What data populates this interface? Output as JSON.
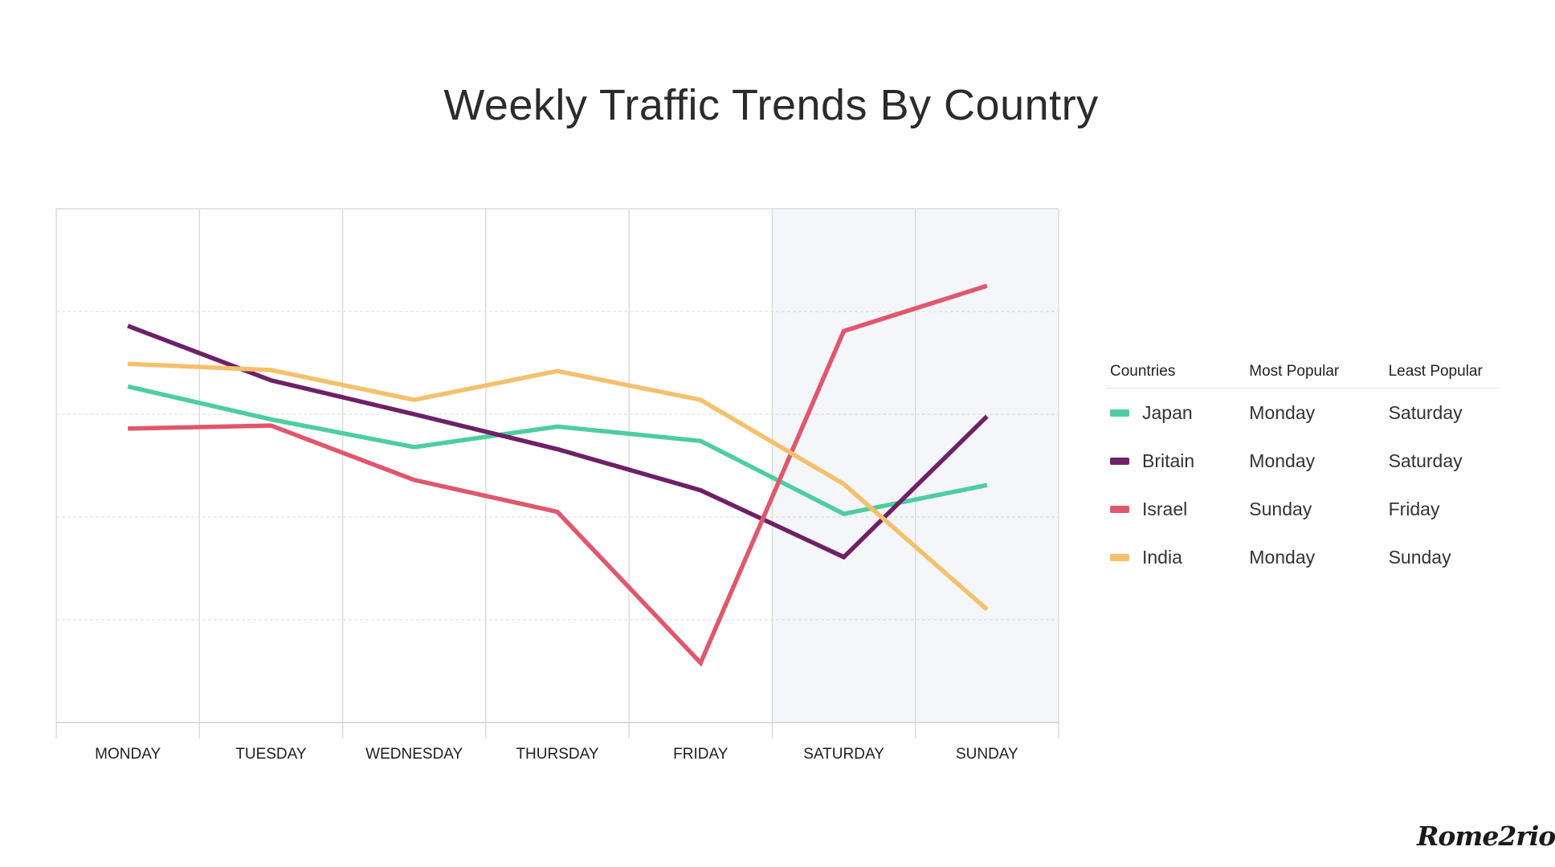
{
  "chart_data": {
    "type": "line",
    "title": "Weekly Traffic Trends By Country",
    "xlabel": "",
    "ylabel": "",
    "categories": [
      "MONDAY",
      "TUESDAY",
      "WEDNESDAY",
      "THURSDAY",
      "FRIDAY",
      "SATURDAY",
      "SUNDAY"
    ],
    "ylim": [
      0,
      5
    ],
    "grid": true,
    "highlighted_categories": [
      "SATURDAY",
      "SUNDAY"
    ],
    "series": [
      {
        "name": "Japan",
        "color": "#4ecda0",
        "values": [
          3.27,
          2.95,
          2.68,
          2.88,
          2.74,
          2.03,
          2.31
        ]
      },
      {
        "name": "Britain",
        "color": "#6e2167",
        "values": [
          3.86,
          3.33,
          3.0,
          2.66,
          2.26,
          1.61,
          2.98
        ]
      },
      {
        "name": "Israel",
        "color": "#e0576d",
        "values": [
          2.86,
          2.89,
          2.36,
          2.05,
          0.58,
          3.81,
          4.25
        ]
      },
      {
        "name": "India",
        "color": "#f5c06b",
        "values": [
          3.49,
          3.43,
          3.14,
          3.42,
          3.14,
          2.32,
          1.1
        ]
      }
    ]
  },
  "legend": {
    "headers": {
      "country": "Countries",
      "most": "Most Popular",
      "least": "Least Popular"
    },
    "rows": [
      {
        "country": "Japan",
        "most": "Monday",
        "least": "Saturday",
        "color": "#4ecda0"
      },
      {
        "country": "Britain",
        "most": "Monday",
        "least": "Saturday",
        "color": "#6e2167"
      },
      {
        "country": "Israel",
        "most": "Sunday",
        "least": "Friday",
        "color": "#e0576d"
      },
      {
        "country": "India",
        "most": "Monday",
        "least": "Sunday",
        "color": "#f5c06b"
      }
    ]
  },
  "brand": {
    "logo_text": "Rome2rio"
  }
}
